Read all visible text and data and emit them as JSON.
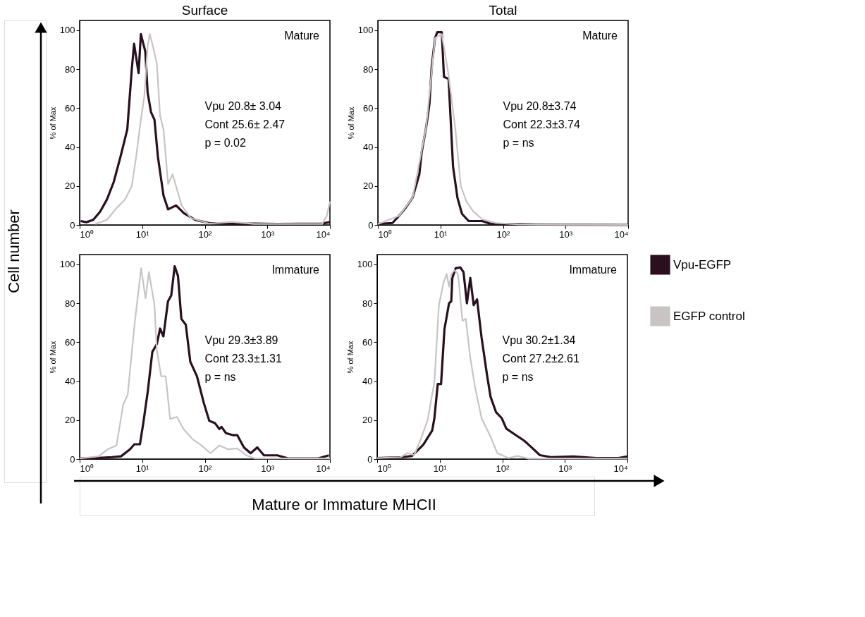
{
  "chart_data": [
    {
      "type": "line",
      "title": "Surface",
      "ylabel": "% of Max",
      "log": "x",
      "grid": false,
      "legend": false,
      "xlim": [
        1,
        10000
      ],
      "xticks": [
        {
          "value": 1,
          "label": "10⁰"
        },
        {
          "value": 10,
          "label": "10¹"
        },
        {
          "value": 100,
          "label": "10²"
        },
        {
          "value": 1000,
          "label": "10³"
        },
        {
          "value": 10000,
          "label": "10⁴"
        }
      ],
      "ylim": [
        0,
        105
      ],
      "yticks": [
        0,
        20,
        40,
        60,
        80,
        100
      ],
      "annotations": [
        "Mature",
        "Vpu      20.8± 3.04",
        "Cont    25.6± 2.47",
        "p = 0.02",
        "Cell number"
      ],
      "series": [
        {
          "color": "#2a0f1f",
          "x": [
            1.04,
            1.28,
            1.65,
            2.12,
            2.72,
            3.5,
            4.49,
            5.77,
            6.81,
            7.41,
            7.92,
            8.75,
            9.51,
            11.2,
            12.2,
            13.8,
            15.7,
            17.8,
            21.9,
            25.9,
            34.7,
            46.4,
            70.5,
            116,
            268,
            617,
            1420,
            7530,
            10000
          ],
          "values": [
            2,
            1.4,
            2.6,
            6.8,
            13,
            22,
            35,
            49,
            80,
            93,
            87,
            78,
            98,
            89,
            68,
            58,
            54,
            35,
            15,
            8,
            10,
            6,
            2.6,
            1,
            0.5,
            0.7,
            0.5,
            0.7,
            1.5
          ]
        },
        {
          "color": "#c8c4c4",
          "x": [
            1.79,
            2.72,
            3.8,
            5.3,
            6.81,
            8.0,
            9.5,
            10.8,
            12.2,
            13.2,
            15.0,
            17.1,
            19.3,
            21.9,
            25.9,
            30.6,
            36.1,
            42.7,
            59.6,
            116,
            268,
            617,
            7530,
            8900,
            10000
          ],
          "values": [
            0.5,
            2.6,
            8.3,
            13,
            20,
            35,
            54,
            66,
            92,
            98,
            91,
            83,
            56,
            49,
            21,
            26,
            18,
            10,
            3.6,
            0.7,
            1.6,
            0.5,
            0.5,
            4.7,
            12
          ]
        }
      ]
    },
    {
      "type": "line",
      "title": "Total",
      "ylabel": "% of Max",
      "log": "x",
      "grid": false,
      "legend": false,
      "xlim": [
        1,
        10000
      ],
      "xticks": [
        {
          "value": 1,
          "label": "10⁰"
        },
        {
          "value": 10,
          "label": "10¹"
        },
        {
          "value": 100,
          "label": "10²"
        },
        {
          "value": 1000,
          "label": "10³"
        },
        {
          "value": 10000,
          "label": "10⁴"
        }
      ],
      "ylim": [
        0,
        105
      ],
      "yticks": [
        0,
        20,
        40,
        60,
        80,
        100
      ],
      "annotations": [
        "Mature",
        "Vpu      20.8±3.74",
        "Cont    22.3±3.74",
        "p = ns"
      ],
      "series": [
        {
          "color": "#2a0f1f",
          "x": [
            1,
            1.71,
            2.19,
            2.81,
            3.59,
            4.6,
            5.0,
            5.9,
            6.67,
            7.24,
            8.2,
            8.91,
            10.5,
            11.4,
            13.5,
            15.9,
            18.7,
            22.1,
            28.3,
            46.4,
            64.6,
            125,
            397,
            10000
          ],
          "values": [
            0.5,
            1,
            4.7,
            9,
            14,
            26,
            37,
            50,
            62,
            81,
            96,
            99,
            99,
            76,
            75,
            30,
            14,
            5.7,
            2,
            2,
            0.5,
            0.5,
            0.2,
            0
          ]
        },
        {
          "color": "#c8c4c4",
          "x": [
            1,
            2.19,
            3.59,
            5.9,
            8.2,
            10.5,
            13.5,
            17.2,
            21.2,
            26.1,
            33.4,
            46.4,
            76.2,
            174,
            10000
          ],
          "values": [
            0.5,
            4.7,
            14,
            50,
            96,
            98,
            77,
            50,
            20,
            12,
            7,
            3,
            1,
            0.3,
            0
          ]
        }
      ]
    },
    {
      "type": "line",
      "ylabel": "% of Max",
      "log": "x",
      "grid": false,
      "legend": false,
      "xlim": [
        1,
        10000
      ],
      "xticks": [
        {
          "value": 1,
          "label": "10⁰"
        },
        {
          "value": 10,
          "label": "10¹"
        },
        {
          "value": 100,
          "label": "10²"
        },
        {
          "value": 1000,
          "label": "10³"
        },
        {
          "value": 10000,
          "label": "10⁴"
        }
      ],
      "ylim": [
        0,
        105
      ],
      "yticks": [
        0,
        20,
        40,
        60,
        80,
        100
      ],
      "annotations": [
        "Immature",
        "Vpu      29.3±3.89",
        "Cont    23.3±1.31",
        "p = ns",
        "Mature or Immature MHCII"
      ],
      "series": [
        {
          "color": "#2a0f1f",
          "x": [
            1,
            2.01,
            3.3,
            4.58,
            6.36,
            7.5,
            9.2,
            10.4,
            12.3,
            14.5,
            17.1,
            19.3,
            21.8,
            25.8,
            29.1,
            33,
            37.3,
            42.2,
            49.7,
            58.6,
            75,
            96,
            118,
            145,
            171,
            185,
            218,
            279,
            330,
            422,
            540,
            690,
            884,
            1450,
            2180,
            6360,
            9600
          ],
          "values": [
            0.3,
            0.6,
            1,
            1.4,
            5,
            7.6,
            7.6,
            18.5,
            35,
            55,
            59,
            67,
            63,
            81,
            84,
            99,
            94,
            72,
            69,
            50,
            42.5,
            29,
            19.6,
            18.5,
            15.4,
            16.5,
            13.3,
            12.3,
            12.3,
            6,
            3,
            6,
            1.9,
            1.9,
            0.3,
            0.3,
            1.9
          ]
        },
        {
          "color": "#c8c4c4",
          "x": [
            1,
            2.01,
            2.8,
            3.88,
            4.97,
            5.86,
            7.5,
            9.6,
            11.3,
            12.8,
            15.7,
            17.1,
            20.1,
            23.7,
            27.9,
            35.8,
            45.8,
            63.6,
            88.3,
            123,
            171,
            237,
            330,
            458,
            637,
            10000
          ],
          "values": [
            0.3,
            1.4,
            5,
            7,
            28,
            33,
            68.5,
            98,
            82.5,
            96,
            79,
            56,
            42.5,
            42.5,
            20.6,
            21.6,
            15.4,
            10.2,
            7,
            3,
            7,
            5,
            5.5,
            1.9,
            0.3,
            0.3
          ]
        }
      ]
    },
    {
      "type": "line",
      "ylabel": "% of Max",
      "log": "x",
      "grid": false,
      "legend": "right",
      "xlim": [
        1,
        10000
      ],
      "xticks": [
        {
          "value": 1,
          "label": "10⁰"
        },
        {
          "value": 10,
          "label": "10¹"
        },
        {
          "value": 100,
          "label": "10²"
        },
        {
          "value": 1000,
          "label": "10³"
        },
        {
          "value": 10000,
          "label": "10⁴"
        }
      ],
      "ylim": [
        0,
        105
      ],
      "yticks": [
        0,
        20,
        40,
        60,
        80,
        100
      ],
      "annotations": [
        "Immature",
        "Vpu      30.2±1.34",
        "Cont    27.2±2.61",
        "p = ns"
      ],
      "series": [
        {
          "name": "Vpu-EGFP",
          "color": "#2a0f1f",
          "x": [
            1,
            2.59,
            3.6,
            5.44,
            7.57,
            8.22,
            9.3,
            10.5,
            11.9,
            14.1,
            15.3,
            15.9,
            18,
            21.3,
            24,
            27.2,
            30.8,
            34.9,
            39.5,
            46.6,
            57.3,
            64.9,
            79.6,
            98,
            116,
            161,
            224,
            287,
            399,
            603,
            1380,
            3150,
            7190,
            10000
          ],
          "values": [
            0.5,
            1,
            1.6,
            7.3,
            14.6,
            21,
            38.5,
            38.5,
            66.7,
            80,
            81,
            93,
            98,
            98.4,
            96,
            80,
            93,
            79,
            82,
            62.5,
            42.7,
            32,
            24,
            21,
            15.6,
            12.5,
            9.4,
            6.3,
            2,
            1,
            1.3,
            0.5,
            0.5,
            1.3
          ]
        },
        {
          "name": "EGFP control",
          "color": "#c8c4c4",
          "x": [
            1,
            2.38,
            3.05,
            3.91,
            5.01,
            6.41,
            8.22,
            9.7,
            11.4,
            12.9,
            14.1,
            15.3,
            17.3,
            19.6,
            23.1,
            26.1,
            30.8,
            36.4,
            46.6,
            64.9,
            83,
            125,
            175,
            264,
            10000
          ],
          "values": [
            0.5,
            1,
            3.1,
            2,
            10.4,
            20,
            39.6,
            79,
            90,
            95,
            88.5,
            95,
            97,
            95,
            71,
            72,
            52,
            37.5,
            21,
            11.5,
            3.1,
            0.5,
            1.6,
            0.2,
            0.2
          ]
        }
      ]
    }
  ]
}
